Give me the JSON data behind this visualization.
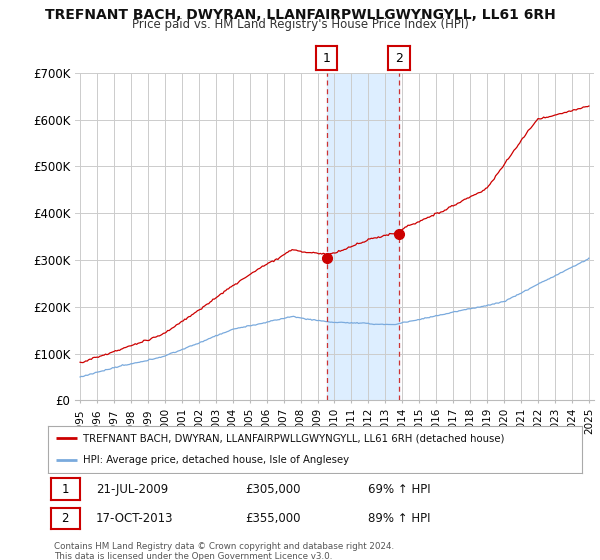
{
  "title": "TREFNANT BACH, DWYRAN, LLANFAIRPWLLGWYNGYLL, LL61 6RH",
  "subtitle": "Price paid vs. HM Land Registry's House Price Index (HPI)",
  "legend_line1": "TREFNANT BACH, DWYRAN, LLANFAIRPWLLGWYNGYLL, LL61 6RH (detached house)",
  "legend_line2": "HPI: Average price, detached house, Isle of Anglesey",
  "footer": "Contains HM Land Registry data © Crown copyright and database right 2024.\nThis data is licensed under the Open Government Licence v3.0.",
  "sale1_label": "1",
  "sale1_date": "21-JUL-2009",
  "sale1_price": "£305,000",
  "sale1_hpi": "69% ↑ HPI",
  "sale1_year": 2009.54,
  "sale1_value": 305000,
  "sale2_label": "2",
  "sale2_date": "17-OCT-2013",
  "sale2_price": "£355,000",
  "sale2_hpi": "89% ↑ HPI",
  "sale2_year": 2013.79,
  "sale2_value": 355000,
  "ylim": [
    0,
    700000
  ],
  "yticks": [
    0,
    100000,
    200000,
    300000,
    400000,
    500000,
    600000,
    700000
  ],
  "ytick_labels": [
    "£0",
    "£100K",
    "£200K",
    "£300K",
    "£400K",
    "£500K",
    "£600K",
    "£700K"
  ],
  "xlim_start": 1994.7,
  "xlim_end": 2025.3,
  "red_color": "#cc0000",
  "blue_color": "#7aaadd",
  "shade_color": "#ddeeff",
  "vline_color": "#cc3333",
  "background_color": "#ffffff",
  "grid_color": "#cccccc"
}
